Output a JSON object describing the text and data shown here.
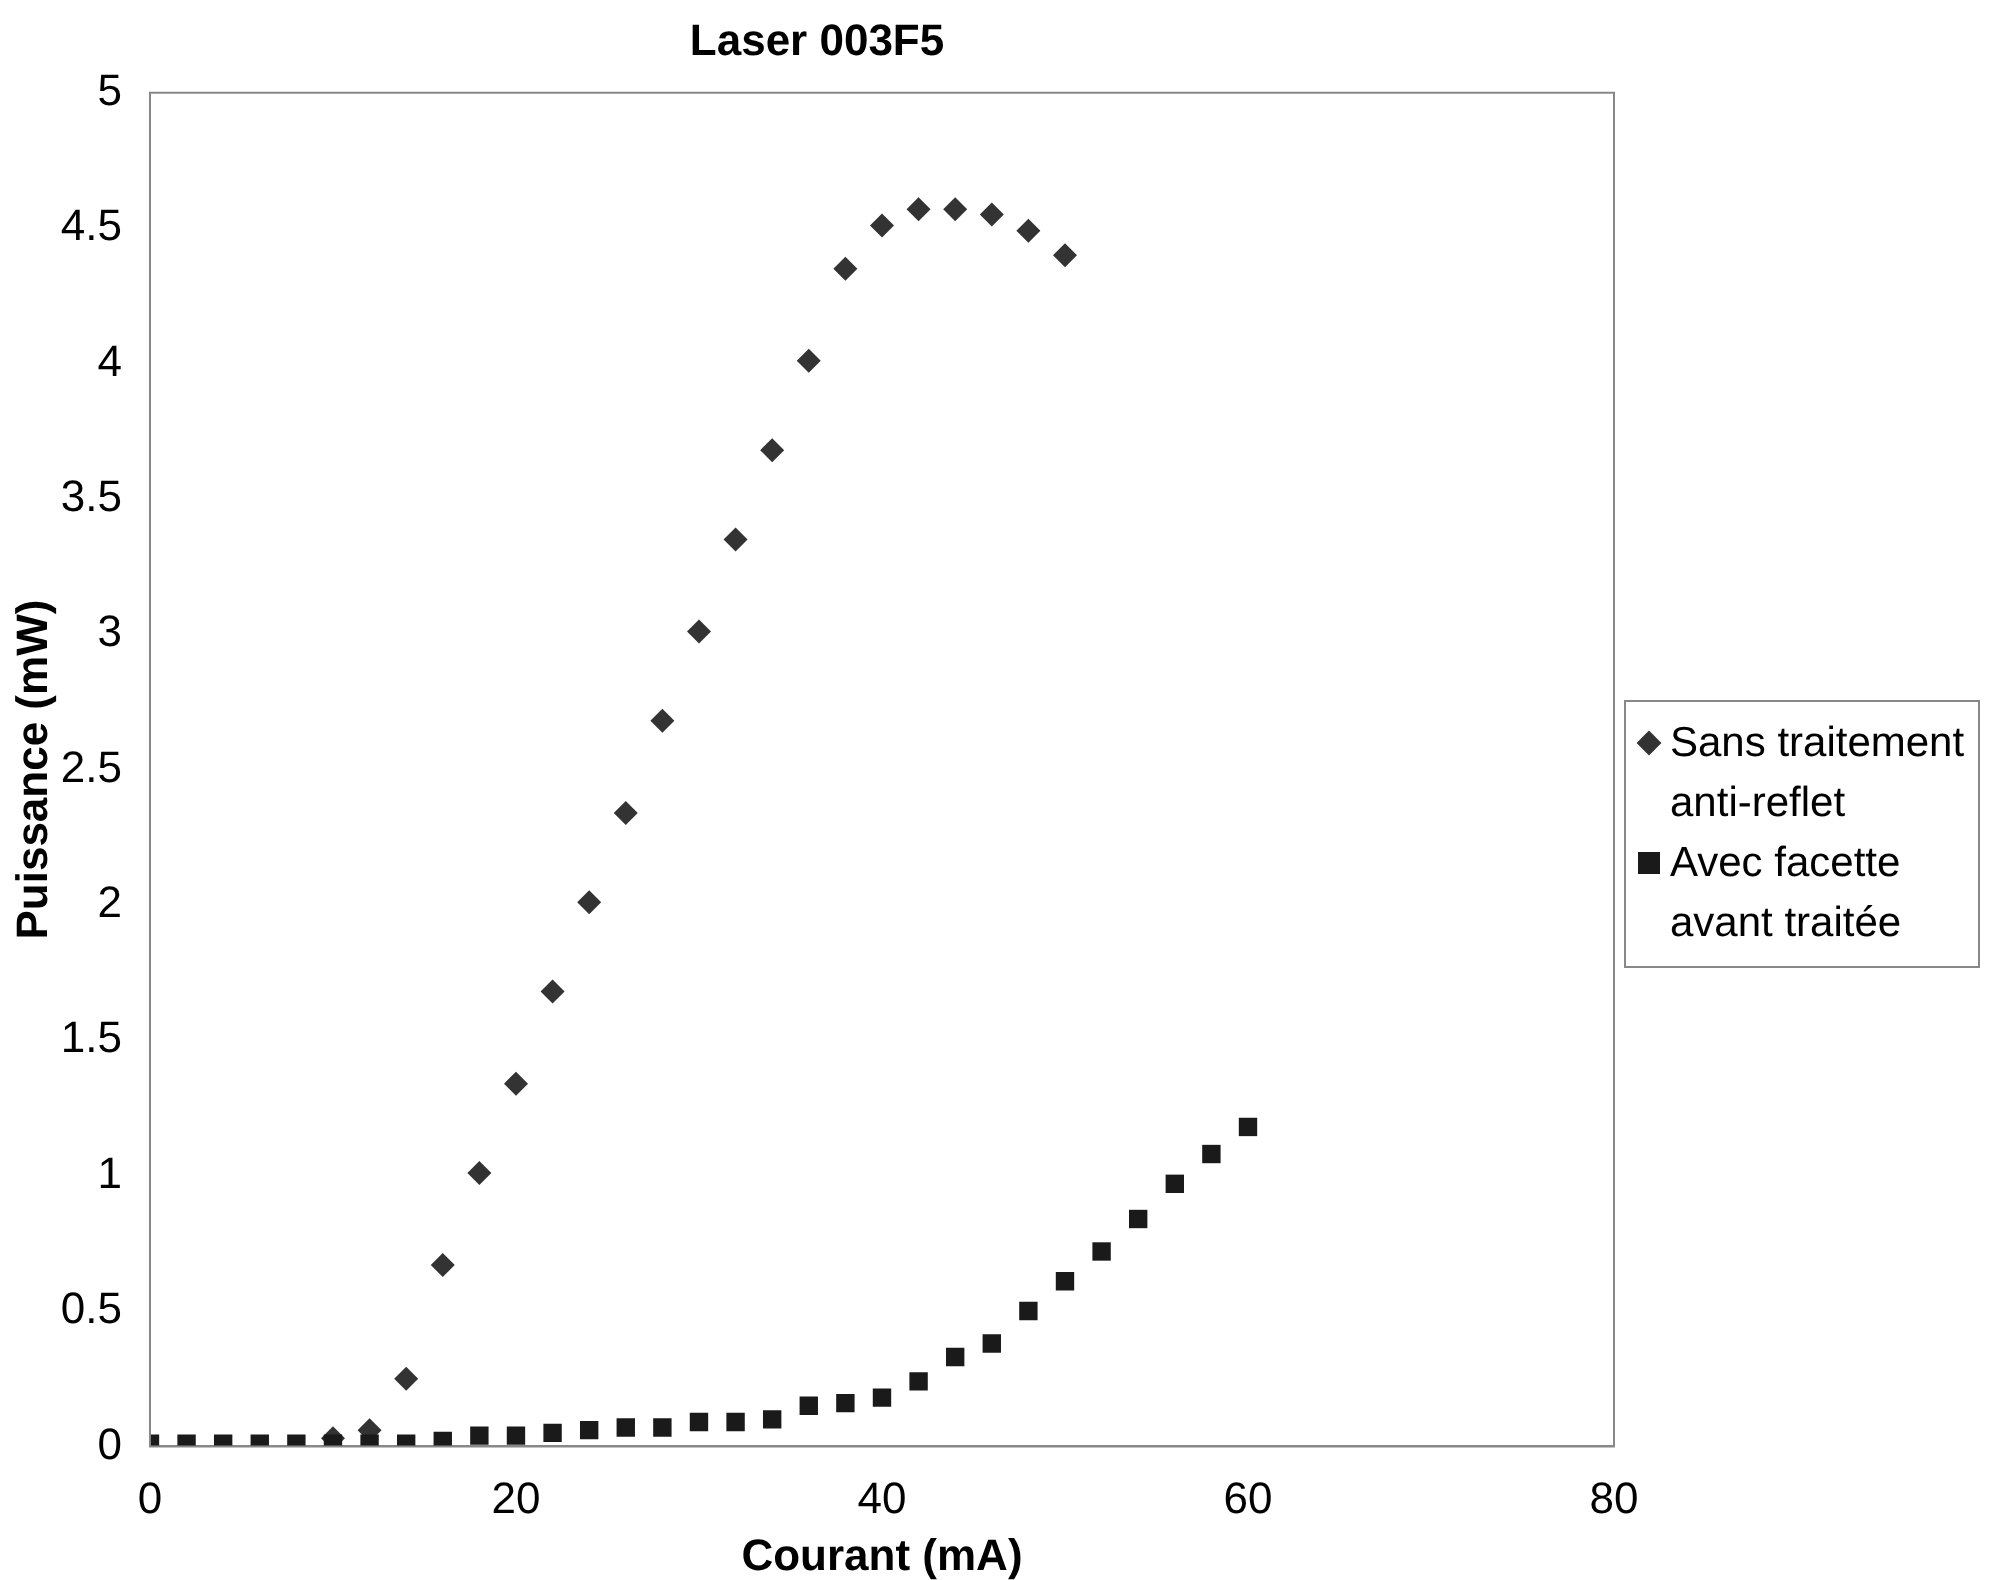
{
  "chart_data": {
    "type": "scatter",
    "title": "Laser 003F5",
    "xlabel": "Courant (mA)",
    "ylabel": "Puissance (mW)",
    "xlim": [
      0,
      80
    ],
    "xticks": [
      0,
      20,
      40,
      60,
      80
    ],
    "ylim": [
      0,
      5
    ],
    "yticks": [
      0,
      0.5,
      1,
      1.5,
      2,
      2.5,
      3,
      3.5,
      4,
      4.5,
      5
    ],
    "grid": false,
    "legend": "right",
    "series": [
      {
        "name": "Sans traitement anti-reflet",
        "color": "#333333",
        "marker": "diamond",
        "x": [
          10,
          12,
          14,
          16,
          18,
          20,
          22,
          24,
          26,
          28,
          30,
          32,
          34,
          36,
          38,
          40,
          42,
          44,
          46,
          48,
          50
        ],
        "values": [
          0.03,
          0.06,
          0.25,
          0.67,
          1.01,
          1.34,
          1.68,
          2.01,
          2.34,
          2.68,
          3.01,
          3.35,
          3.68,
          4.01,
          4.35,
          4.51,
          4.57,
          4.57,
          4.55,
          4.49,
          4.4
        ]
      },
      {
        "name": "Avec facette avant traitée",
        "color": "#1a1a1a",
        "marker": "square",
        "x": [
          0,
          2,
          4,
          6,
          8,
          10,
          12,
          14,
          16,
          18,
          20,
          22,
          24,
          26,
          28,
          30,
          32,
          34,
          36,
          38,
          40,
          42,
          44,
          46,
          48,
          50,
          52,
          54,
          56,
          58,
          60
        ],
        "values": [
          0.01,
          0.01,
          0.01,
          0.01,
          0.01,
          0.01,
          0.01,
          0.01,
          0.02,
          0.04,
          0.04,
          0.05,
          0.06,
          0.07,
          0.07,
          0.09,
          0.09,
          0.1,
          0.15,
          0.16,
          0.18,
          0.24,
          0.33,
          0.38,
          0.5,
          0.61,
          0.72,
          0.84,
          0.97,
          1.08,
          1.18
        ]
      }
    ]
  }
}
